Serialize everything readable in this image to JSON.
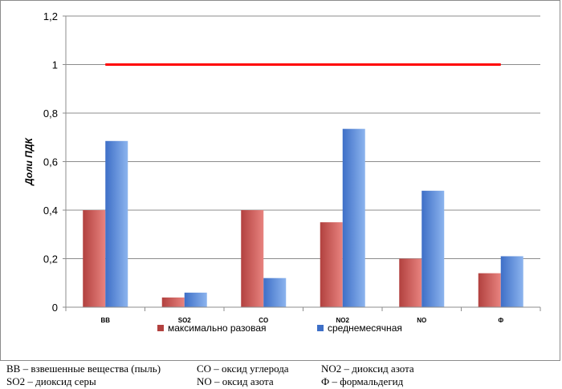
{
  "chart_data": {
    "type": "bar",
    "title": "",
    "xlabel": "",
    "ylabel": "Доли ПДК",
    "ylim": [
      0,
      1.2
    ],
    "yticks": [
      "0",
      "0,2",
      "0,4",
      "0,6",
      "0,8",
      "1",
      "1,2"
    ],
    "ytick_values": [
      0,
      0.2,
      0.4,
      0.6,
      0.8,
      1.0,
      1.2
    ],
    "grid": true,
    "categories": [
      "ВВ",
      "SO2",
      "CO",
      "NO2",
      "NO",
      "Ф"
    ],
    "series": [
      {
        "name": "максимально разовая",
        "values": [
          0.4,
          0.04,
          0.4,
          0.35,
          0.2,
          0.14
        ],
        "color": "#b2413f"
      },
      {
        "name": "среднемесячная",
        "values": [
          0.685,
          0.06,
          0.12,
          0.735,
          0.48,
          0.21
        ],
        "color": "#3e6fc7"
      }
    ],
    "reference_line": {
      "value": 1.0,
      "color": "#ff0000"
    },
    "legend_position": "bottom"
  },
  "notes": [
    [
      "ВВ – взвешенные вещества (пыль)",
      "CO – оксид углерода",
      "NO2 – диоксид азота"
    ],
    [
      "SO2 – диоксид серы",
      "NO – оксид азота",
      "Ф – формальдегид"
    ]
  ]
}
